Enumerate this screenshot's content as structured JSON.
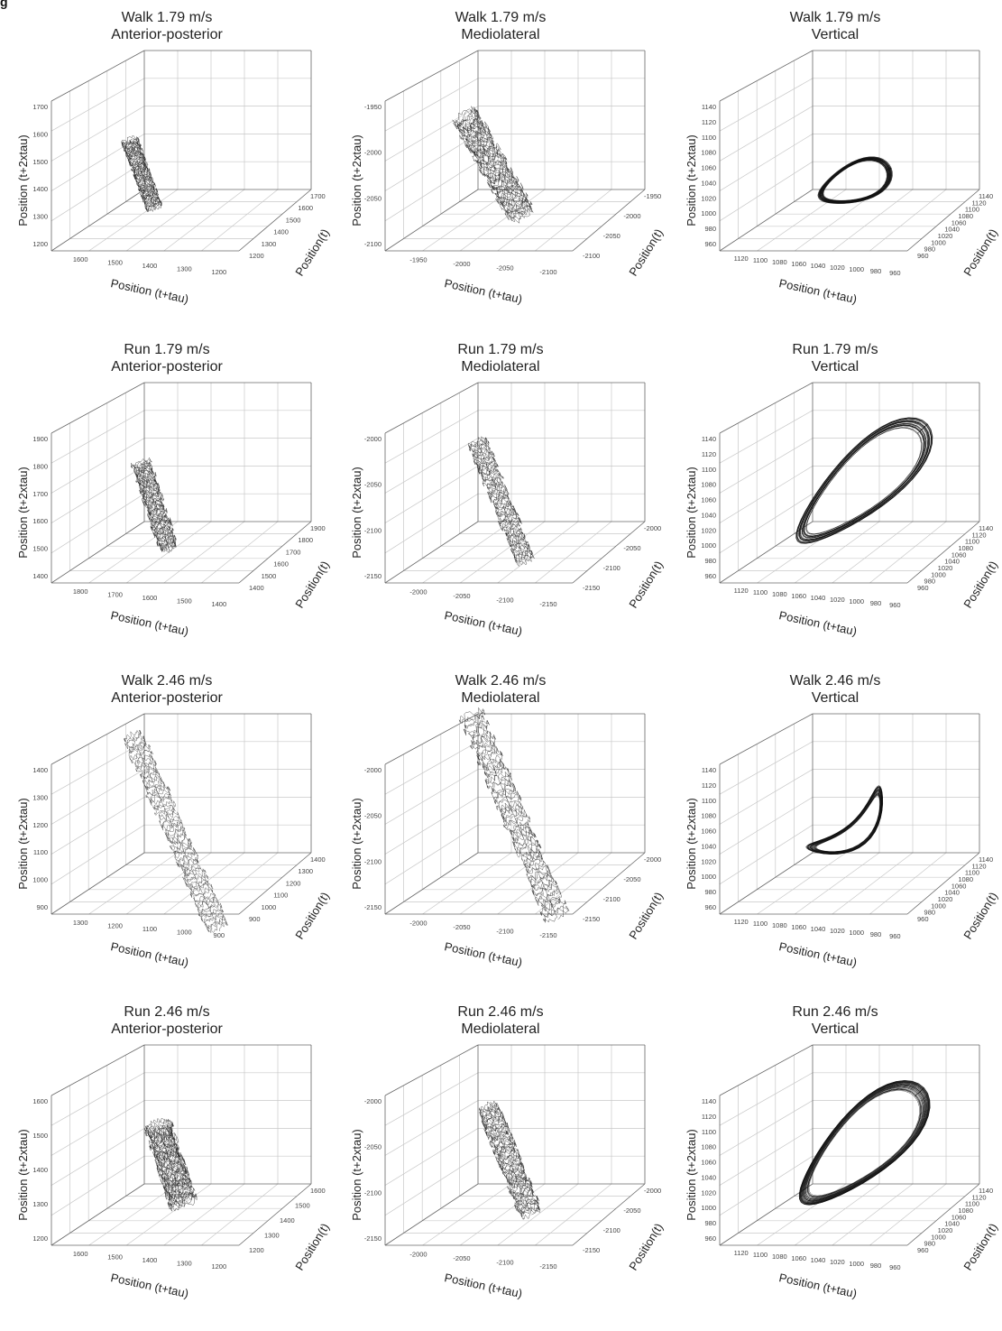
{
  "figure": {
    "label": "g"
  },
  "chart_data": [
    {
      "type": "line3d",
      "title": "Walk 1.79 m/s",
      "subtitle": "Anterior-posterior",
      "xlabel": "Position (t+tau)",
      "ylabel": "Position(t)",
      "zlabel": "Position (t+2xtau)",
      "x_ticks": [
        "1600",
        "1500",
        "1400",
        "1300",
        "1200"
      ],
      "y_ticks": [
        "1200",
        "1300",
        "1400",
        "1500",
        "1600",
        "1700"
      ],
      "z_ticks": [
        "1200",
        "1300",
        "1400",
        "1500",
        "1600",
        "1700"
      ],
      "attractor": {
        "shape": "band",
        "center": [
          0.35,
          0.62
        ],
        "length": 0.28,
        "width": 0.06,
        "angle_deg": 70,
        "line_color": "#222222"
      }
    },
    {
      "type": "line3d",
      "title": "Walk 1.79 m/s",
      "subtitle": "Mediolateral",
      "xlabel": "Position (t+tau)",
      "ylabel": "Position(t)",
      "zlabel": "Position (t+2xtau)",
      "x_ticks": [
        "-1950",
        "-2000",
        "-2050",
        "-2100"
      ],
      "y_ticks": [
        "-2100",
        "-2050",
        "-2000",
        "-1950"
      ],
      "z_ticks": [
        "-2100",
        "-2050",
        "-2000",
        "-1950"
      ],
      "attractor": {
        "shape": "band",
        "center": [
          0.42,
          0.58
        ],
        "length": 0.45,
        "width": 0.1,
        "angle_deg": 60,
        "line_color": "#222222"
      }
    },
    {
      "type": "line3d",
      "title": "Walk 1.79 m/s",
      "subtitle": "Vertical",
      "xlabel": "Position (t+tau)",
      "ylabel": "Position(t)",
      "zlabel": "Position (t+2xtau)",
      "x_ticks": [
        "1120",
        "1100",
        "1080",
        "1060",
        "1040",
        "1020",
        "1000",
        "980",
        "960"
      ],
      "y_ticks": [
        "960",
        "980",
        "1000",
        "1020",
        "1040",
        "1060",
        "1080",
        "1100",
        "1120",
        "1140"
      ],
      "z_ticks": [
        "960",
        "980",
        "1000",
        "1020",
        "1040",
        "1060",
        "1080",
        "1100",
        "1120",
        "1140"
      ],
      "attractor": {
        "shape": "loop",
        "center": [
          0.52,
          0.66
        ],
        "length": 0.28,
        "width": 0.09,
        "angle_deg": -22,
        "line_color": "#111111"
      }
    },
    {
      "type": "line3d",
      "title": "Run 1.79 m/s",
      "subtitle": "Anterior-posterior",
      "xlabel": "Position (t+tau)",
      "ylabel": "Position(t)",
      "zlabel": "Position (t+2xtau)",
      "x_ticks": [
        "1800",
        "1700",
        "1600",
        "1500",
        "1400"
      ],
      "y_ticks": [
        "1400",
        "1500",
        "1600",
        "1700",
        "1800",
        "1900"
      ],
      "z_ticks": [
        "1400",
        "1500",
        "1600",
        "1700",
        "1800",
        "1900"
      ],
      "attractor": {
        "shape": "band",
        "center": [
          0.4,
          0.62
        ],
        "length": 0.35,
        "width": 0.07,
        "angle_deg": 72,
        "line_color": "#222222"
      }
    },
    {
      "type": "line3d",
      "title": "Run 1.79 m/s",
      "subtitle": "Mediolateral",
      "xlabel": "Position (t+tau)",
      "ylabel": "Position(t)",
      "zlabel": "Position (t+2xtau)",
      "x_ticks": [
        "-2000",
        "-2050",
        "-2100",
        "-2150"
      ],
      "y_ticks": [
        "-2150",
        "-2100",
        "-2050",
        "-2000"
      ],
      "z_ticks": [
        "-2150",
        "-2100",
        "-2050",
        "-2000"
      ],
      "attractor": {
        "shape": "band",
        "center": [
          0.45,
          0.6
        ],
        "length": 0.5,
        "width": 0.07,
        "angle_deg": 68,
        "line_color": "#222222"
      }
    },
    {
      "type": "line3d",
      "title": "Run 1.79 m/s",
      "subtitle": "Vertical",
      "xlabel": "Position (t+tau)",
      "ylabel": "Position(t)",
      "zlabel": "Position (t+2xtau)",
      "x_ticks": [
        "1120",
        "1100",
        "1080",
        "1060",
        "1040",
        "1020",
        "1000",
        "980",
        "960"
      ],
      "y_ticks": [
        "960",
        "980",
        "1000",
        "1020",
        "1040",
        "1060",
        "1080",
        "1100",
        "1120",
        "1140"
      ],
      "z_ticks": [
        "960",
        "980",
        "1000",
        "1020",
        "1040",
        "1060",
        "1080",
        "1100",
        "1120",
        "1140"
      ],
      "attractor": {
        "shape": "loop",
        "center": [
          0.55,
          0.5
        ],
        "length": 0.62,
        "width": 0.14,
        "angle_deg": -42,
        "line_color": "#111111"
      }
    },
    {
      "type": "line3d",
      "title": "Walk 2.46 m/s",
      "subtitle": "Anterior-posterior",
      "xlabel": "Position (t+tau)",
      "ylabel": "Position(t)",
      "zlabel": "Position (t+2xtau)",
      "x_ticks": [
        "1300",
        "1200",
        "1100",
        "1000",
        "900"
      ],
      "y_ticks": [
        "900",
        "1000",
        "1100",
        "1200",
        "1300",
        "1400"
      ],
      "z_ticks": [
        "900",
        "1000",
        "1100",
        "1200",
        "1300",
        "1400"
      ],
      "attractor": {
        "shape": "band",
        "center": [
          0.48,
          0.6
        ],
        "length": 0.82,
        "width": 0.08,
        "angle_deg": 66,
        "line_color": "#333333"
      }
    },
    {
      "type": "line3d",
      "title": "Walk 2.46 m/s",
      "subtitle": "Mediolateral",
      "xlabel": "Position (t+tau)",
      "ylabel": "Position(t)",
      "zlabel": "Position (t+2xtau)",
      "x_ticks": [
        "-2000",
        "-2050",
        "-2100",
        "-2150"
      ],
      "y_ticks": [
        "-2150",
        "-2100",
        "-2050",
        "-2000"
      ],
      "z_ticks": [
        "-2150",
        "-2100",
        "-2050",
        "-2000"
      ],
      "attractor": {
        "shape": "band",
        "center": [
          0.5,
          0.52
        ],
        "length": 0.85,
        "width": 0.09,
        "angle_deg": 67,
        "line_color": "#222222"
      }
    },
    {
      "type": "line3d",
      "title": "Walk 2.46 m/s",
      "subtitle": "Vertical",
      "xlabel": "Position (t+tau)",
      "ylabel": "Position(t)",
      "zlabel": "Position (t+2xtau)",
      "x_ticks": [
        "1120",
        "1100",
        "1080",
        "1060",
        "1040",
        "1020",
        "1000",
        "980",
        "960"
      ],
      "y_ticks": [
        "960",
        "980",
        "1000",
        "1020",
        "1040",
        "1060",
        "1080",
        "1100",
        "1120",
        "1140"
      ],
      "z_ticks": [
        "960",
        "980",
        "1000",
        "1020",
        "1040",
        "1060",
        "1080",
        "1100",
        "1120",
        "1140"
      ],
      "attractor": {
        "shape": "arc",
        "center": [
          0.53,
          0.6
        ],
        "length": 0.34,
        "width": 0.07,
        "angle_deg": -40,
        "line_color": "#111111"
      }
    },
    {
      "type": "line3d",
      "title": "Run 2.46 m/s",
      "subtitle": "Anterior-posterior",
      "xlabel": "Position (t+tau)",
      "ylabel": "Position(t)",
      "zlabel": "Position (t+2xtau)",
      "x_ticks": [
        "1600",
        "1500",
        "1400",
        "1300",
        "1200"
      ],
      "y_ticks": [
        "1200",
        "1300",
        "1400",
        "1500",
        "1600"
      ],
      "z_ticks": [
        "1200",
        "1300",
        "1400",
        "1500",
        "1600"
      ],
      "attractor": {
        "shape": "band",
        "center": [
          0.46,
          0.6
        ],
        "length": 0.32,
        "width": 0.1,
        "angle_deg": 72,
        "line_color": "#222222"
      }
    },
    {
      "type": "line3d",
      "title": "Run 2.46 m/s",
      "subtitle": "Mediolateral",
      "xlabel": "Position (t+tau)",
      "ylabel": "Position(t)",
      "zlabel": "Position (t+2xtau)",
      "x_ticks": [
        "-2000",
        "-2050",
        "-2100",
        "-2150"
      ],
      "y_ticks": [
        "-2150",
        "-2100",
        "-2050",
        "-2000"
      ],
      "z_ticks": [
        "-2150",
        "-2100",
        "-2050",
        "-2000"
      ],
      "attractor": {
        "shape": "band",
        "center": [
          0.48,
          0.58
        ],
        "length": 0.45,
        "width": 0.08,
        "angle_deg": 68,
        "line_color": "#222222"
      }
    },
    {
      "type": "line3d",
      "title": "Run 2.46 m/s",
      "subtitle": "Vertical",
      "xlabel": "Position (t+tau)",
      "ylabel": "Position(t)",
      "zlabel": "Position (t+2xtau)",
      "x_ticks": [
        "1120",
        "1100",
        "1080",
        "1060",
        "1040",
        "1020",
        "1000",
        "980",
        "960"
      ],
      "y_ticks": [
        "960",
        "980",
        "1000",
        "1020",
        "1040",
        "1060",
        "1080",
        "1100",
        "1120",
        "1140"
      ],
      "z_ticks": [
        "960",
        "980",
        "1000",
        "1020",
        "1040",
        "1060",
        "1080",
        "1100",
        "1120",
        "1140"
      ],
      "attractor": {
        "shape": "loop",
        "center": [
          0.55,
          0.5
        ],
        "length": 0.6,
        "width": 0.15,
        "angle_deg": -43,
        "line_color": "#111111"
      }
    }
  ]
}
